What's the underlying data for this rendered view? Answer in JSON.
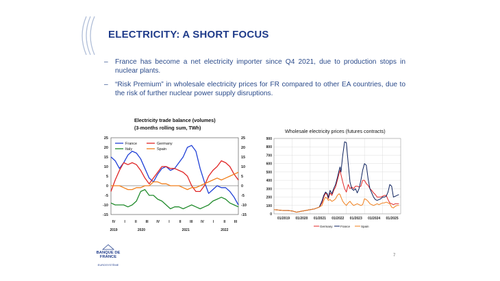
{
  "slide": {
    "title": "ELECTRICITY: A SHORT FOCUS",
    "bullets": [
      "France has become a net electricity importer since Q4 2021, due to production stops in nuclear plants.",
      "“Risk Premium” in wholesale electricity prices for FR compared to other EA countries, due to the risk of further nuclear power supply disruptions."
    ],
    "bullet_marker": "–",
    "logo_text": "BANQUE DE FRANCE",
    "logo_subtext": "EUROSYSTÈME",
    "page_number": "7"
  },
  "chart_data": [
    {
      "type": "line",
      "title": "Electricity trade balance (volumes)",
      "subtitle": "(3-months rolling sum, TWh)",
      "ylim": [
        -15,
        25
      ],
      "yticks": [
        -15,
        -10,
        -5,
        0,
        5,
        10,
        15,
        20,
        25
      ],
      "x_quarter_labels": [
        "IV",
        "I",
        "II",
        "III",
        "IV",
        "I",
        "II",
        "III",
        "IV",
        "I",
        "II",
        "III"
      ],
      "x_year_labels": [
        {
          "label": "2019",
          "index": 0
        },
        {
          "label": "2020",
          "index": 2.5
        },
        {
          "label": "2021",
          "index": 6.5
        },
        {
          "label": "2022",
          "index": 10
        }
      ],
      "legend": "top-left",
      "grid": false,
      "series": [
        {
          "name": "France",
          "color": "#1f3fd6",
          "values": [
            15,
            13,
            9,
            12,
            16,
            18,
            17,
            14,
            9,
            4,
            2,
            6,
            9,
            10,
            8,
            9,
            12,
            15,
            20,
            21,
            18,
            9,
            2,
            -4,
            -2,
            0,
            -1,
            -1,
            -3,
            -6,
            -10
          ]
        },
        {
          "name": "Germany",
          "color": "#e02424",
          "values": [
            -3,
            3,
            8,
            12,
            11,
            12,
            11,
            8,
            4,
            1,
            4,
            7,
            10,
            10,
            9,
            9,
            8,
            7,
            5,
            0,
            -3,
            -3,
            0,
            5,
            8,
            10,
            13,
            12,
            10,
            6,
            3
          ]
        },
        {
          "name": "Italy",
          "color": "#1f8a2a",
          "values": [
            -9,
            -10,
            -10,
            -10,
            -11,
            -10,
            -8,
            -3,
            -2,
            -5,
            -5,
            -7,
            -8,
            -10,
            -12,
            -11,
            -11,
            -12,
            -11,
            -10,
            -11,
            -12,
            -11,
            -10,
            -8,
            -7,
            -6,
            -7,
            -9,
            -10,
            -11
          ]
        },
        {
          "name": "Spain",
          "color": "#f07e1a",
          "values": [
            0,
            0,
            0,
            -1,
            -2,
            -2,
            -1,
            -1,
            0,
            0,
            2,
            2,
            1,
            1,
            0,
            0,
            0,
            -1,
            -2,
            -1,
            -1,
            0,
            1,
            2,
            3,
            4,
            3,
            4,
            5,
            6,
            7
          ]
        }
      ]
    },
    {
      "type": "line",
      "title": "Wholesale electricity prices (futures contracts)",
      "ylim": [
        0,
        900
      ],
      "yticks": [
        0,
        100,
        200,
        300,
        400,
        500,
        600,
        700,
        800,
        900
      ],
      "x_tick_labels": [
        "01/2019",
        "01/2020",
        "01/2021",
        "01/2022",
        "01/2023",
        "01/2024",
        "01/2025"
      ],
      "x_range": [
        2019.0,
        2026.0
      ],
      "legend": "bottom",
      "grid": true,
      "x": [
        2019.0,
        2019.25,
        2019.5,
        2019.75,
        2020.0,
        2020.25,
        2020.5,
        2020.75,
        2021.0,
        2021.25,
        2021.5,
        2021.65,
        2021.75,
        2021.85,
        2021.95,
        2022.0,
        2022.1,
        2022.2,
        2022.3,
        2022.4,
        2022.5,
        2022.6,
        2022.65,
        2022.7,
        2022.8,
        2022.9,
        2023.0,
        2023.1,
        2023.2,
        2023.3,
        2023.4,
        2023.5,
        2023.6,
        2023.7,
        2023.8,
        2023.9,
        2024.0,
        2024.1,
        2024.2,
        2024.3,
        2024.4,
        2024.5,
        2024.6,
        2024.7,
        2024.8,
        2024.9,
        2025.0,
        2025.1,
        2025.2,
        2025.3,
        2025.4,
        2025.5,
        2025.6,
        2025.7,
        2025.8,
        2025.9
      ],
      "series": [
        {
          "name": "Germany",
          "color": "#e02424",
          "values": [
            50,
            45,
            40,
            40,
            35,
            20,
            30,
            40,
            50,
            60,
            80,
            130,
            200,
            250,
            220,
            180,
            250,
            220,
            280,
            320,
            400,
            480,
            520,
            470,
            380,
            300,
            260,
            350,
            300,
            320,
            300,
            330,
            330,
            320,
            330,
            400,
            400,
            360,
            340,
            300,
            280,
            250,
            230,
            200,
            200,
            200,
            210,
            220,
            220,
            170,
            130,
            120,
            110,
            120,
            120,
            120
          ]
        },
        {
          "name": "France",
          "color": "#0a1f5c",
          "values": [
            50,
            45,
            40,
            40,
            35,
            20,
            30,
            40,
            50,
            60,
            80,
            150,
            220,
            260,
            240,
            190,
            280,
            240,
            300,
            350,
            430,
            520,
            560,
            500,
            700,
            860,
            850,
            600,
            380,
            300,
            280,
            300,
            250,
            300,
            400,
            520,
            600,
            580,
            420,
            300,
            250,
            200,
            170,
            160,
            170,
            180,
            200,
            200,
            210,
            260,
            350,
            330,
            200,
            210,
            220,
            230
          ]
        },
        {
          "name": "Spain",
          "color": "#f07e1a",
          "values": [
            50,
            45,
            40,
            40,
            35,
            20,
            30,
            40,
            50,
            60,
            80,
            100,
            160,
            200,
            180,
            160,
            170,
            150,
            160,
            180,
            220,
            240,
            230,
            200,
            150,
            120,
            100,
            130,
            150,
            120,
            100,
            110,
            120,
            110,
            100,
            110,
            180,
            170,
            150,
            120,
            110,
            100,
            110,
            120,
            110,
            120,
            130,
            130,
            140,
            130,
            120,
            80,
            70,
            90,
            100,
            100
          ]
        }
      ]
    }
  ]
}
